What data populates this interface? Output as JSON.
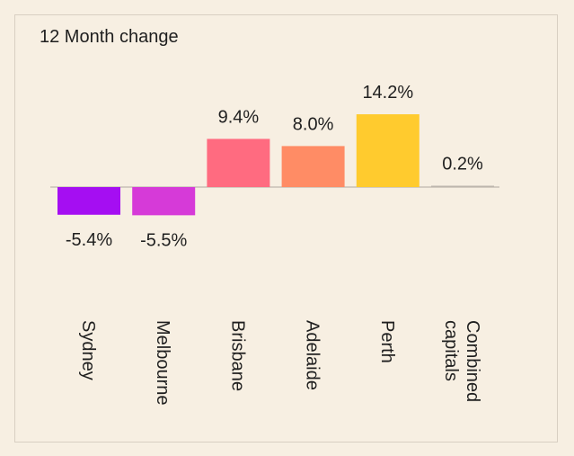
{
  "chart_data": {
    "type": "bar",
    "title": "12 Month change",
    "categories": [
      "Sydney",
      "Melbourne",
      "Brisbane",
      "Adelaide",
      "Perth",
      "Combined capitals"
    ],
    "category_lines": [
      [
        "Sydney"
      ],
      [
        "Melbourne"
      ],
      [
        "Brisbane"
      ],
      [
        "Adelaide"
      ],
      [
        "Perth"
      ],
      [
        "Combined",
        "capitals"
      ]
    ],
    "values": [
      -5.4,
      -5.5,
      9.4,
      8.0,
      14.2,
      0.2
    ],
    "value_labels": [
      "-5.4%",
      "-5.5%",
      "9.4%",
      "8.0%",
      "14.2%",
      "0.2%"
    ],
    "colors": [
      "#a50ef2",
      "#d63ad8",
      "#ff6b80",
      "#ff8c65",
      "#ffcb2e",
      "#bdb6ad"
    ],
    "ylabel": "",
    "xlabel": "",
    "unit": "%",
    "grid": false,
    "legend": "none"
  }
}
